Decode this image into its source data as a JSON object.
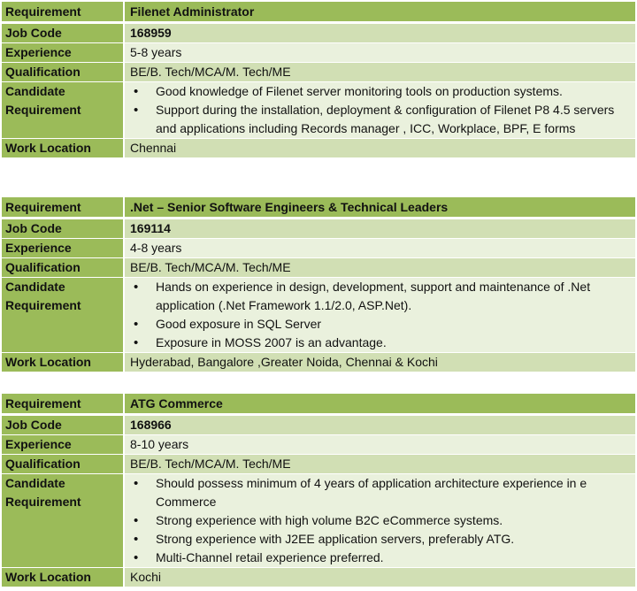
{
  "labels": {
    "requirement": "Requirement",
    "job_code": "Job Code",
    "experience": "Experience",
    "qualification": "Qualification",
    "candidate": "Candidate Requirement",
    "work_location": "Work Location"
  },
  "colors": {
    "header_green": "#9BBB59",
    "row_dark": "#D1DFB4",
    "row_light": "#EAF1DD"
  },
  "jobs": [
    {
      "title": "Filenet Administrator",
      "job_code": "168959",
      "experience": "5-8 years",
      "qualification": "BE/B. Tech/MCA/M. Tech/ME",
      "requirements": [
        "Good knowledge of Filenet server monitoring tools on production systems.",
        "Support during the installation, deployment & configuration of Filenet P8 4.5  servers and applications including Records manager , ICC, Workplace, BPF, E forms"
      ],
      "work_location": "Chennai"
    },
    {
      "title": ".Net – Senior Software Engineers & Technical Leaders",
      "job_code": "169114",
      "experience": "4-8 years",
      "qualification": "BE/B. Tech/MCA/M. Tech/ME",
      "requirements": [
        "Hands on experience in design, development, support and maintenance of .Net application (.Net Framework 1.1/2.0, ASP.Net).",
        "Good exposure in SQL Server",
        "Exposure in MOSS 2007 is an advantage."
      ],
      "work_location": "Hyderabad, Bangalore ,Greater Noida, Chennai & Kochi"
    },
    {
      "title": "ATG Commerce",
      "job_code": "168966",
      "experience": "8-10 years",
      "qualification": "BE/B. Tech/MCA/M. Tech/ME",
      "requirements": [
        "Should possess minimum of 4 years of application architecture experience in e Commerce",
        "Strong experience with high volume B2C eCommerce systems.",
        "Strong experience with J2EE application servers, preferably ATG.",
        "Multi-Channel retail experience preferred."
      ],
      "work_location": "Kochi"
    }
  ]
}
